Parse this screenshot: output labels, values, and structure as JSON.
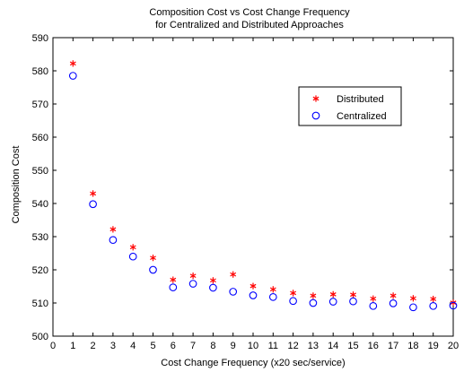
{
  "chart_data": {
    "type": "scatter",
    "title": "Composition Cost vs Cost Change Frequency",
    "subtitle": "for Centralized and Distributed Approaches",
    "xlabel": "Cost Change Frequency (x20 sec/service)",
    "ylabel": "Composition Cost",
    "xlim": [
      0,
      20
    ],
    "ylim": [
      500,
      590
    ],
    "xticks": [
      0,
      1,
      2,
      3,
      4,
      5,
      6,
      7,
      8,
      9,
      10,
      11,
      12,
      13,
      14,
      15,
      16,
      17,
      18,
      19,
      20
    ],
    "yticks": [
      500,
      510,
      520,
      530,
      540,
      550,
      560,
      570,
      580,
      590
    ],
    "grid": false,
    "legend_position": "upper-right",
    "x": [
      1,
      2,
      3,
      4,
      5,
      6,
      7,
      8,
      9,
      10,
      11,
      12,
      13,
      14,
      15,
      16,
      17,
      18,
      19,
      20
    ],
    "series": [
      {
        "name": "Distributed",
        "marker": "asterisk",
        "color": "#ff0000",
        "values": [
          582.2,
          543.0,
          532.2,
          526.8,
          523.6,
          517.0,
          518.2,
          516.8,
          518.6,
          515.1,
          514.1,
          513.0,
          512.2,
          512.6,
          512.5,
          511.3,
          512.2,
          511.4,
          511.2,
          510.1
        ]
      },
      {
        "name": "Centralized",
        "marker": "circle",
        "color": "#0000ff",
        "values": [
          578.5,
          539.8,
          529.0,
          524.0,
          520.0,
          514.7,
          515.8,
          514.6,
          513.4,
          512.3,
          511.8,
          510.6,
          510.0,
          510.4,
          510.5,
          509.1,
          509.9,
          508.7,
          509.1,
          509.2
        ]
      }
    ]
  }
}
